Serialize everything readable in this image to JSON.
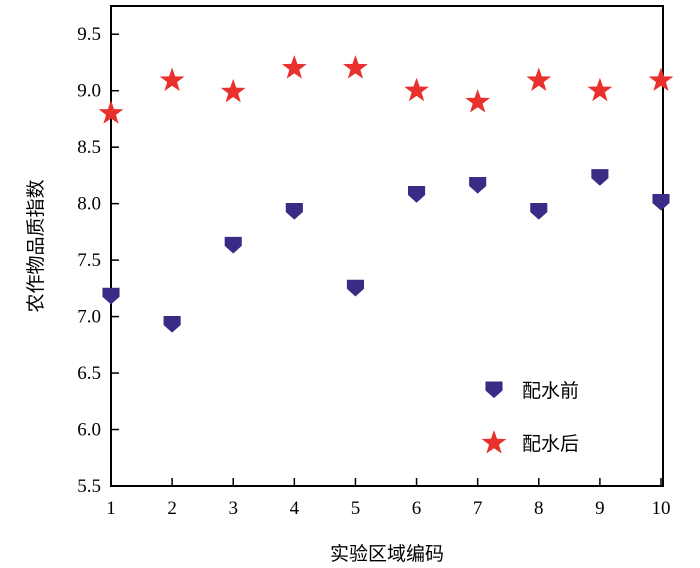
{
  "chart_data": {
    "type": "scatter",
    "title": "",
    "xlabel": "实验区域编码",
    "ylabel": "农作物品质指数",
    "xlim": [
      1,
      10
    ],
    "ylim": [
      5.5,
      9.75
    ],
    "x_ticks": [
      1,
      2,
      3,
      4,
      5,
      6,
      7,
      8,
      9,
      10
    ],
    "y_ticks": [
      "5.5",
      "6.0",
      "6.5",
      "7.0",
      "7.5",
      "8.0",
      "8.5",
      "9.0",
      "9.5"
    ],
    "grid": false,
    "legend_position": "bottom-right",
    "series": [
      {
        "name": "配水前",
        "marker": "pentagon-down",
        "color": "#3b2a86",
        "x": [
          1,
          2,
          3,
          4,
          5,
          6,
          7,
          8,
          9,
          10
        ],
        "y": [
          7.18,
          6.93,
          7.63,
          7.93,
          7.25,
          8.08,
          8.16,
          7.93,
          8.23,
          8.01
        ]
      },
      {
        "name": "配水后",
        "marker": "star",
        "color": "#e8302c",
        "x": [
          1,
          2,
          3,
          4,
          5,
          6,
          7,
          8,
          9,
          10
        ],
        "y": [
          8.8,
          9.09,
          8.99,
          9.2,
          9.2,
          9.0,
          8.9,
          9.09,
          9.0,
          9.09
        ]
      }
    ]
  }
}
